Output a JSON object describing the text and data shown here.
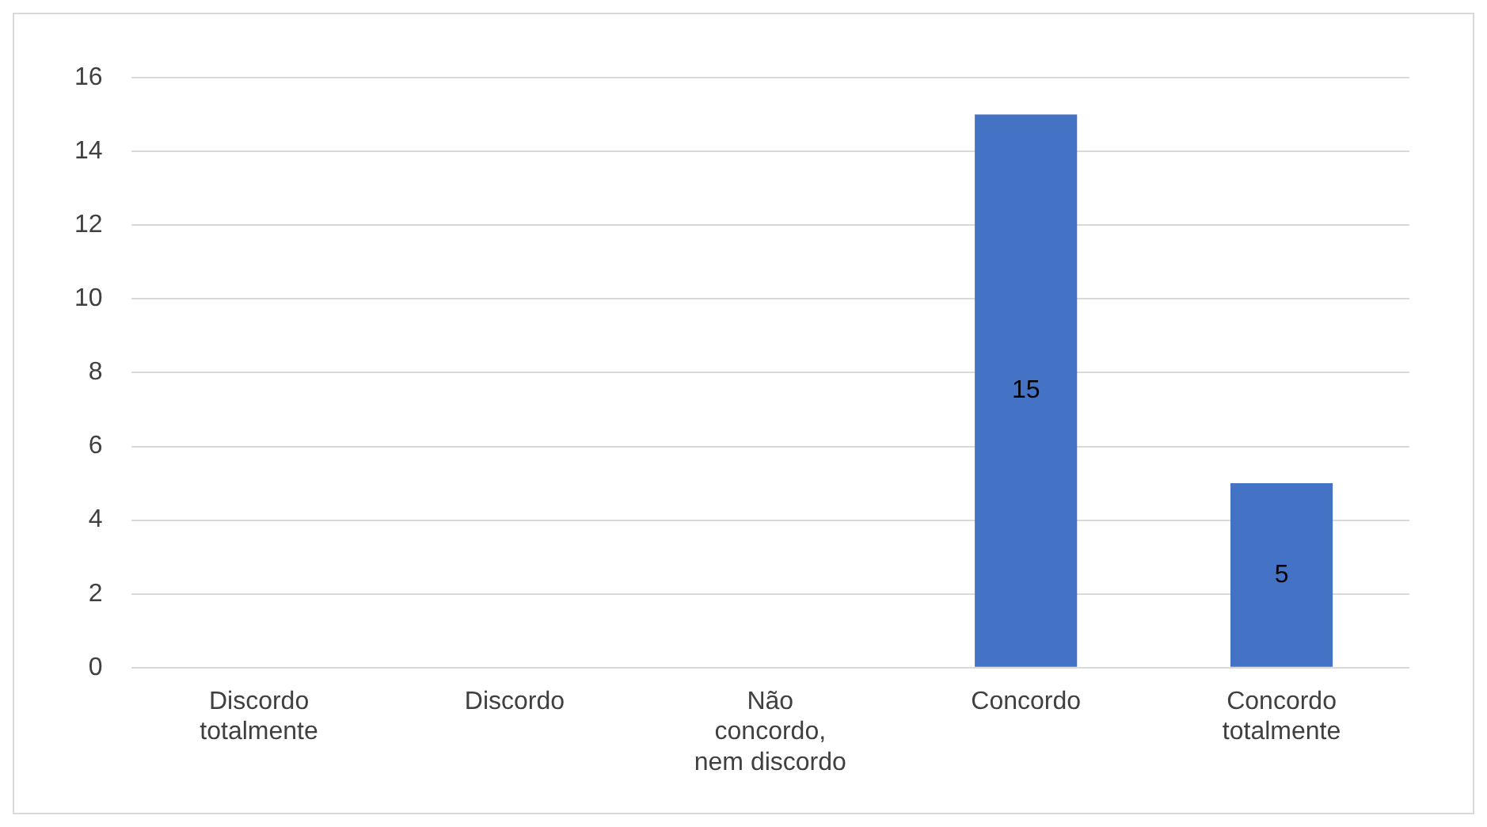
{
  "chart_data": {
    "type": "bar",
    "categories": [
      "Discordo totalmente",
      "Discordo",
      "Não concordo, nem discordo",
      "Concordo",
      "Concordo totalmente"
    ],
    "values": [
      0,
      0,
      0,
      15,
      5
    ],
    "value_labels": [
      null,
      null,
      null,
      "15",
      "5"
    ],
    "color": "#4472c4",
    "ylim": [
      0,
      16
    ],
    "yticks": [
      0,
      2,
      4,
      6,
      8,
      10,
      12,
      14,
      16
    ],
    "grid": "y"
  }
}
